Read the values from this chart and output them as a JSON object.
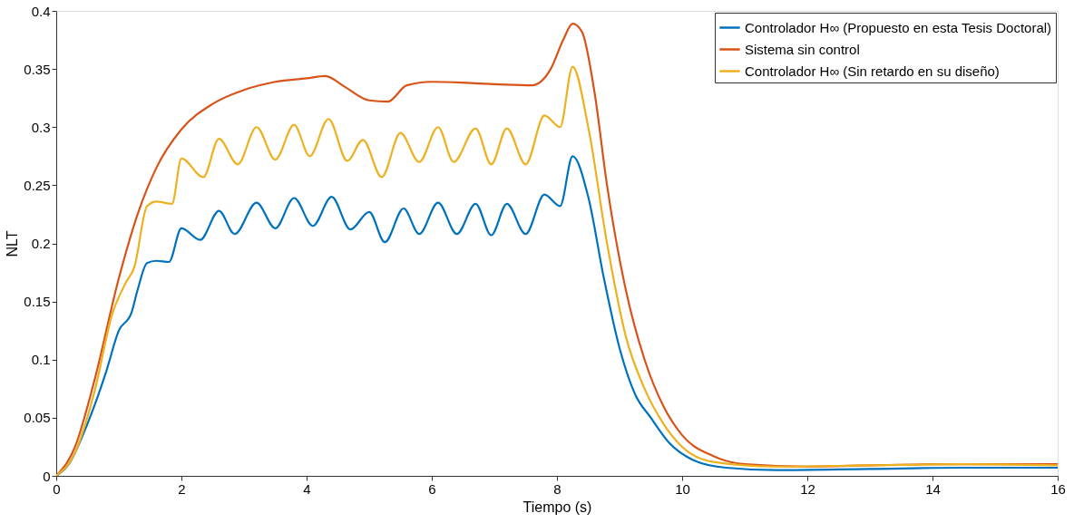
{
  "chart_data": {
    "type": "line",
    "xlabel": "Tiempo (s)",
    "ylabel": "NLT",
    "xlim": [
      0,
      16
    ],
    "xticks": [
      0,
      2,
      4,
      6,
      8,
      10,
      12,
      14,
      16
    ],
    "ylim": [
      0,
      0.4
    ],
    "yticks": [
      0,
      0.05,
      0.1,
      0.15,
      0.2,
      0.25,
      0.3,
      0.35,
      0.4
    ],
    "grid": false,
    "legend": "top right",
    "line_style": "solid",
    "series": [
      {
        "name": "Controlador H∞ (Propuesto en esta Tesis Doctoral)",
        "color": "#0072bd",
        "x": [
          0,
          0.2,
          0.5,
          0.8,
          1.0,
          1.2,
          1.3,
          1.45,
          1.6,
          1.8,
          2.0,
          2.3,
          2.6,
          2.85,
          3.2,
          3.5,
          3.8,
          4.1,
          4.4,
          4.7,
          5.0,
          5.25,
          5.55,
          5.8,
          6.1,
          6.4,
          6.7,
          6.95,
          7.2,
          7.5,
          7.8,
          8.05,
          8.25,
          8.5,
          8.75,
          9.0,
          9.25,
          9.5,
          9.8,
          10.2,
          10.7,
          11.5,
          13,
          14.5,
          16
        ],
        "values": [
          0,
          0.01,
          0.045,
          0.09,
          0.125,
          0.14,
          0.16,
          0.183,
          0.185,
          0.184,
          0.213,
          0.203,
          0.228,
          0.208,
          0.235,
          0.213,
          0.239,
          0.215,
          0.24,
          0.212,
          0.227,
          0.201,
          0.23,
          0.208,
          0.235,
          0.208,
          0.234,
          0.207,
          0.234,
          0.208,
          0.242,
          0.232,
          0.275,
          0.24,
          0.17,
          0.11,
          0.07,
          0.05,
          0.028,
          0.013,
          0.007,
          0.005,
          0.006,
          0.007,
          0.007
        ]
      },
      {
        "name": "Sistema sin control",
        "color": "#d95319",
        "x": [
          0,
          0.3,
          0.6,
          1.0,
          1.3,
          1.6,
          2.0,
          2.5,
          3,
          3.5,
          4,
          4.3,
          4.6,
          5.0,
          5.3,
          5.6,
          6,
          7,
          7.6,
          7.9,
          8.1,
          8.25,
          8.4,
          8.6,
          8.8,
          9.1,
          9.4,
          9.7,
          10.0,
          10.5,
          11,
          12,
          14,
          16
        ],
        "values": [
          0,
          0.025,
          0.08,
          0.17,
          0.225,
          0.265,
          0.298,
          0.32,
          0.332,
          0.339,
          0.342,
          0.344,
          0.335,
          0.323,
          0.322,
          0.336,
          0.339,
          0.337,
          0.336,
          0.35,
          0.375,
          0.389,
          0.382,
          0.33,
          0.25,
          0.16,
          0.1,
          0.06,
          0.035,
          0.017,
          0.01,
          0.008,
          0.01,
          0.01
        ]
      },
      {
        "name": "Controlador H∞ (Sin retardo en su diseño)",
        "color": "#edb120",
        "x": [
          0,
          0.3,
          0.6,
          0.9,
          1.1,
          1.25,
          1.45,
          1.6,
          1.85,
          2.0,
          2.35,
          2.6,
          2.9,
          3.2,
          3.5,
          3.8,
          4.05,
          4.35,
          4.65,
          4.9,
          5.2,
          5.5,
          5.8,
          6.1,
          6.35,
          6.7,
          6.95,
          7.2,
          7.5,
          7.8,
          8.05,
          8.25,
          8.5,
          8.8,
          9.1,
          9.4,
          9.7,
          10.0,
          10.5,
          11.5,
          13,
          14.5,
          16
        ],
        "values": [
          0,
          0.02,
          0.07,
          0.14,
          0.165,
          0.18,
          0.232,
          0.236,
          0.234,
          0.273,
          0.257,
          0.29,
          0.268,
          0.3,
          0.272,
          0.302,
          0.275,
          0.307,
          0.271,
          0.289,
          0.257,
          0.295,
          0.27,
          0.3,
          0.27,
          0.299,
          0.268,
          0.299,
          0.268,
          0.31,
          0.3,
          0.352,
          0.3,
          0.2,
          0.12,
          0.075,
          0.045,
          0.025,
          0.012,
          0.008,
          0.009,
          0.01,
          0.009
        ]
      }
    ]
  }
}
